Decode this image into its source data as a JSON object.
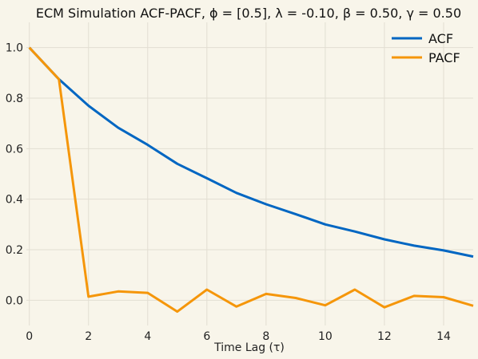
{
  "chart_data": {
    "type": "line",
    "title": "ECM Simulation ACF-PACF, ϕ = [0.5], λ = -0.10, β = 0.50, γ = 0.50",
    "xlabel": "Time Lag (τ)",
    "ylabel": "",
    "xlim": [
      -0.1,
      15
    ],
    "ylim": [
      -0.1,
      1.1
    ],
    "xticks": [
      0,
      2,
      4,
      6,
      8,
      10,
      12,
      14
    ],
    "xtick_labels": [
      "0",
      "2",
      "4",
      "6",
      "8",
      "10",
      "12",
      "14"
    ],
    "yticks": [
      0.0,
      0.2,
      0.4,
      0.6,
      0.8,
      1.0
    ],
    "ytick_labels": [
      "0.0",
      "0.2",
      "0.4",
      "0.6",
      "0.8",
      "1.0"
    ],
    "grid": true,
    "legend_position": "top-right",
    "x": [
      0,
      1,
      2,
      3,
      4,
      5,
      6,
      7,
      8,
      9,
      10,
      11,
      12,
      13,
      14,
      15
    ],
    "series": [
      {
        "name": "ACF",
        "color": "#0066c2",
        "values": [
          1.0,
          0.875,
          0.77,
          0.683,
          0.615,
          0.54,
          0.483,
          0.425,
          0.38,
          0.341,
          0.3,
          0.272,
          0.241,
          0.216,
          0.197,
          0.173
        ]
      },
      {
        "name": "PACF",
        "color": "#f5960a",
        "values": [
          1.0,
          0.875,
          0.014,
          0.035,
          0.029,
          -0.045,
          0.042,
          -0.025,
          0.025,
          0.009,
          -0.02,
          0.042,
          -0.028,
          0.017,
          0.012,
          -0.022
        ]
      }
    ]
  }
}
